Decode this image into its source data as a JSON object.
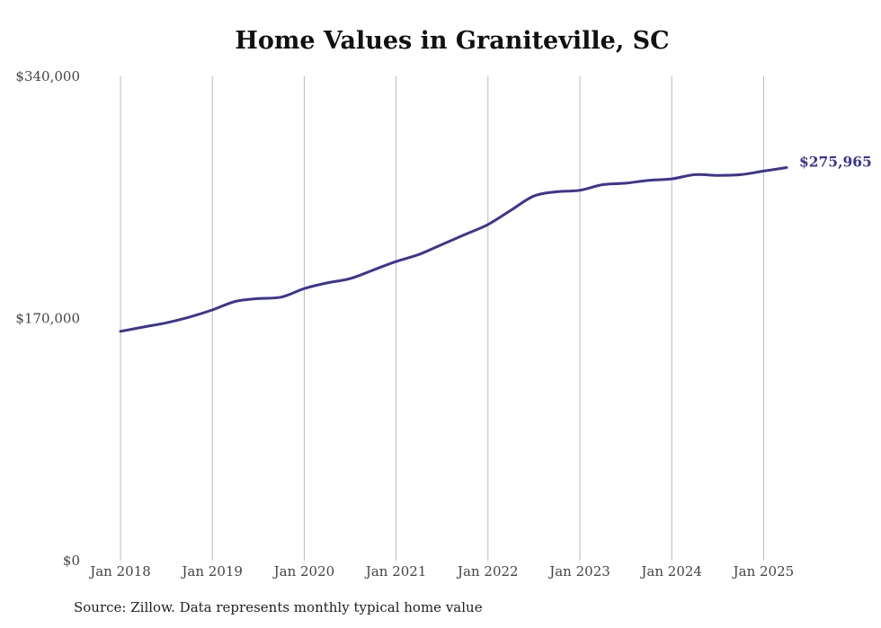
{
  "chart_data": {
    "type": "line",
    "title": "Home Values in Graniteville, SC",
    "y_tick_labels": [
      "$0",
      "$170,000",
      "$340,000"
    ],
    "x_tick_labels": [
      "Jan 2018",
      "Jan 2019",
      "Jan 2020",
      "Jan 2021",
      "Jan 2022",
      "Jan 2023",
      "Jan 2024",
      "Jan 2025"
    ],
    "ylim": [
      0,
      340000
    ],
    "x_range": [
      "2018-01",
      "2025-04"
    ],
    "grid": "vertical",
    "end_label": "$275,965",
    "series": [
      {
        "color": "#3d3590",
        "points": [
          [
            "2018-01",
            161000
          ],
          [
            "2018-04",
            164000
          ],
          [
            "2018-07",
            167000
          ],
          [
            "2018-10",
            171000
          ],
          [
            "2019-01",
            176000
          ],
          [
            "2019-04",
            182000
          ],
          [
            "2019-07",
            184000
          ],
          [
            "2019-10",
            185000
          ],
          [
            "2020-01",
            191000
          ],
          [
            "2020-04",
            195000
          ],
          [
            "2020-07",
            198000
          ],
          [
            "2020-10",
            204000
          ],
          [
            "2021-01",
            210000
          ],
          [
            "2021-04",
            215000
          ],
          [
            "2021-07",
            222000
          ],
          [
            "2021-10",
            229000
          ],
          [
            "2022-01",
            236000
          ],
          [
            "2022-04",
            246000
          ],
          [
            "2022-07",
            256000
          ],
          [
            "2022-10",
            259000
          ],
          [
            "2023-01",
            260000
          ],
          [
            "2023-04",
            264000
          ],
          [
            "2023-07",
            265000
          ],
          [
            "2023-10",
            267000
          ],
          [
            "2024-01",
            268000
          ],
          [
            "2024-04",
            271000
          ],
          [
            "2024-07",
            270500
          ],
          [
            "2024-10",
            271000
          ],
          [
            "2025-01",
            273500
          ],
          [
            "2025-04",
            275965
          ]
        ]
      }
    ]
  },
  "source_note": "Source: Zillow. Data represents monthly typical home value"
}
